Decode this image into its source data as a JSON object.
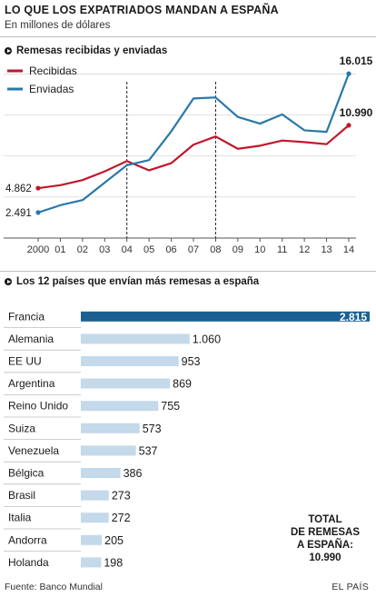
{
  "header": {
    "title": "LO QUE LOS EXPATRIADOS MANDAN A ESPAÑA",
    "subtitle": "En millones de dólares"
  },
  "line_section": {
    "heading": "Remesas recibidas y enviadas"
  },
  "bar_section": {
    "heading": "Los 12 países que envían más remesas a españa"
  },
  "total": {
    "line1": "TOTAL",
    "line2": "DE REMESAS",
    "line3": "A ESPAÑA:",
    "value": "10.990"
  },
  "footer": {
    "source": "Fuente: Banco Mundial",
    "brand": "EL PAÍS"
  },
  "colors": {
    "recibidas": "#c0182a",
    "enviadas": "#2a78a8",
    "bar_highlight": "#1b5f93",
    "bar": "#c4d9ea",
    "grid": "#d9d9d9"
  },
  "chart_data": [
    {
      "type": "line",
      "title": "Remesas recibidas y enviadas",
      "x": [
        "2000",
        "01",
        "02",
        "03",
        "04",
        "05",
        "06",
        "07",
        "08",
        "09",
        "10",
        "11",
        "12",
        "13",
        "14"
      ],
      "ylim": [
        0,
        17000
      ],
      "legend_position": "top-left",
      "series": [
        {
          "name": "Recibidas",
          "color": "#c0182a",
          "values": [
            4862,
            5150,
            5650,
            6500,
            7500,
            6600,
            7300,
            9100,
            9900,
            8700,
            9000,
            9500,
            9350,
            9150,
            10990
          ],
          "labeled_points": {
            "0": "4.862",
            "14": "10.990"
          }
        },
        {
          "name": "Enviadas",
          "color": "#2a78a8",
          "values": [
            2491,
            3200,
            3700,
            5400,
            7100,
            7600,
            10400,
            13600,
            13700,
            11800,
            11150,
            12050,
            10500,
            10350,
            16015
          ],
          "labeled_points": {
            "0": "2.491",
            "14": "16.015"
          }
        }
      ],
      "dashed_vertical_at": [
        "04",
        "08"
      ],
      "grid": "horizontal"
    },
    {
      "type": "bar",
      "orientation": "horizontal",
      "title": "Los 12 países que envían más remesas a españa",
      "categories": [
        "Francia",
        "Alemania",
        "EE UU",
        "Argentina",
        "Reino Unido",
        "Suiza",
        "Venezuela",
        "Bélgica",
        "Brasil",
        "Italia",
        "Andorra",
        "Holanda"
      ],
      "values": [
        2815,
        1060,
        953,
        869,
        755,
        573,
        537,
        386,
        273,
        272,
        205,
        198
      ],
      "labels": [
        "2.815",
        "1.060",
        "953",
        "869",
        "755",
        "573",
        "537",
        "386",
        "273",
        "272",
        "205",
        "198"
      ],
      "highlight": "Francia"
    }
  ]
}
